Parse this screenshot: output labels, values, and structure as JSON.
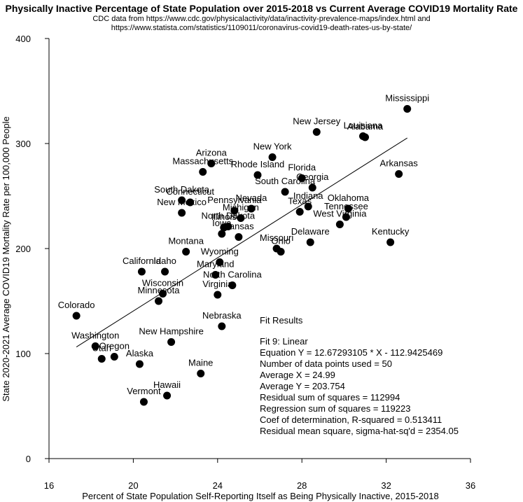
{
  "header": {
    "title": "Physically Inactive Percentage of State Population over 2015-2018 vs Current Average COVID19 Mortality Rate",
    "subtitle_line1": "CDC data from https://www.cdc.gov/physicalactivity/data/inactivity-prevalence-maps/index.html and",
    "subtitle_line2": "https://www.statista.com/statistics/1109011/coronavirus-covid19-death-rates-us-by-state/"
  },
  "chart_data": {
    "type": "scatter",
    "xlabel": "Percent of State Population Self-Reporting Itself as Being Physically Inactive, 2015-2018",
    "ylabel": "State 2020-2021 Average COVID19 Mortality Rate per 100,000 People",
    "xlim": [
      16,
      36
    ],
    "ylim": [
      0,
      400
    ],
    "x_ticks": [
      16,
      20,
      24,
      28,
      32,
      36
    ],
    "y_ticks": [
      0,
      100,
      200,
      300,
      400
    ],
    "grid": false,
    "points": [
      {
        "label": "Mississippi",
        "x": 33.0,
        "y": 333
      },
      {
        "label": "Alabama",
        "x": 31.0,
        "y": 306
      },
      {
        "label": "Louisiana",
        "x": 30.9,
        "y": 307
      },
      {
        "label": "New Jersey",
        "x": 28.7,
        "y": 311
      },
      {
        "label": "Arkansas",
        "x": 32.6,
        "y": 271
      },
      {
        "label": "New York",
        "x": 26.6,
        "y": 287
      },
      {
        "label": "Arizona",
        "x": 23.7,
        "y": 281
      },
      {
        "label": "Massachusetts",
        "x": 23.3,
        "y": 273
      },
      {
        "label": "Rhode Island",
        "x": 25.9,
        "y": 270
      },
      {
        "label": "Florida",
        "x": 28.0,
        "y": 267
      },
      {
        "label": "Georgia",
        "x": 28.5,
        "y": 258
      },
      {
        "label": "South Carolina",
        "x": 27.2,
        "y": 254
      },
      {
        "label": "South Dakota",
        "x": 22.3,
        "y": 246
      },
      {
        "label": "Connecticut",
        "x": 22.7,
        "y": 244
      },
      {
        "label": "New Mexico",
        "x": 22.3,
        "y": 234
      },
      {
        "label": "Nevada",
        "x": 25.6,
        "y": 238
      },
      {
        "label": "Pennsylvania",
        "x": 24.8,
        "y": 236
      },
      {
        "label": "Michigan",
        "x": 25.1,
        "y": 229
      },
      {
        "label": "Indiana",
        "x": 28.3,
        "y": 240
      },
      {
        "label": "Texas",
        "x": 27.9,
        "y": 235
      },
      {
        "label": "Oklahoma",
        "x": 30.2,
        "y": 238
      },
      {
        "label": "Tennessee",
        "x": 30.1,
        "y": 230
      },
      {
        "label": "West Virginia",
        "x": 29.8,
        "y": 223
      },
      {
        "label": "North Dakota",
        "x": 24.5,
        "y": 221
      },
      {
        "label": "Illinois",
        "x": 24.3,
        "y": 220
      },
      {
        "label": "Iowa",
        "x": 24.2,
        "y": 214
      },
      {
        "label": "Kansas",
        "x": 25.0,
        "y": 211
      },
      {
        "label": "Kentucky",
        "x": 32.2,
        "y": 206
      },
      {
        "label": "Delaware",
        "x": 28.4,
        "y": 206
      },
      {
        "label": "Missouri",
        "x": 26.8,
        "y": 200
      },
      {
        "label": "Ohio",
        "x": 27.0,
        "y": 197
      },
      {
        "label": "Montana",
        "x": 22.5,
        "y": 197
      },
      {
        "label": "Wyoming",
        "x": 24.1,
        "y": 187
      },
      {
        "label": "Maryland",
        "x": 23.9,
        "y": 175
      },
      {
        "label": "California",
        "x": 20.4,
        "y": 178
      },
      {
        "label": "Idaho",
        "x": 21.5,
        "y": 178
      },
      {
        "label": "North Carolina",
        "x": 24.7,
        "y": 165
      },
      {
        "label": "Virginia",
        "x": 24.0,
        "y": 156
      },
      {
        "label": "Wisconsin",
        "x": 21.4,
        "y": 157
      },
      {
        "label": "Minnesota",
        "x": 21.2,
        "y": 150
      },
      {
        "label": "Colorado",
        "x": 17.3,
        "y": 136
      },
      {
        "label": "Nebraska",
        "x": 24.2,
        "y": 126
      },
      {
        "label": "New Hampshire",
        "x": 21.8,
        "y": 111
      },
      {
        "label": "Washington",
        "x": 18.2,
        "y": 107
      },
      {
        "label": "Utah",
        "x": 18.5,
        "y": 95
      },
      {
        "label": "Oregon",
        "x": 19.1,
        "y": 97
      },
      {
        "label": "Alaska",
        "x": 20.3,
        "y": 90
      },
      {
        "label": "Maine",
        "x": 23.2,
        "y": 81
      },
      {
        "label": "Hawaii",
        "x": 21.6,
        "y": 60
      },
      {
        "label": "Vermont",
        "x": 20.5,
        "y": 54
      }
    ],
    "fit_line": {
      "slope": 12.67293105,
      "intercept": -112.9425469,
      "x_range": [
        17.3,
        33.0
      ]
    },
    "fit_results": {
      "heading": "Fit Results",
      "line1": "Fit 9: Linear",
      "line2": "Equation Y = 12.67293105 * X - 112.9425469",
      "line3": "Number of data points used = 50",
      "line4": "Average X = 24.99",
      "line5": "Average Y = 203.754",
      "line6": "Residual sum of squares = 112994",
      "line7": "Regression sum of squares = 119223",
      "line8": "Coef of determination, R-squared = 0.513411",
      "line9": "Residual mean square, sigma-hat-sq'd = 2354.05"
    }
  }
}
